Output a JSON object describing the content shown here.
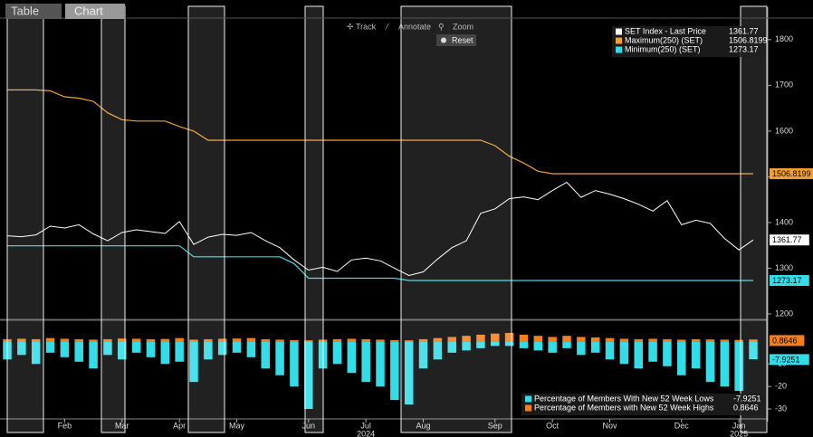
{
  "tabs": [
    "Table",
    "Chart"
  ],
  "toolbar": [
    "Track",
    "Annotate",
    "Zoom",
    "Reset"
  ],
  "annotations": [
    {
      "text": "2024",
      "at": "Jul"
    },
    {
      "text": "2025",
      "at": "Jan"
    }
  ],
  "chart_data": [
    {
      "type": "line",
      "ylim": [
        1190,
        1867
      ],
      "yticks": [
        1200,
        1300,
        1400,
        1500,
        1600,
        1700,
        1800
      ],
      "series": [
        {
          "name": "SET Index - Last Price",
          "color": "#ffffff",
          "values": [
            1371,
            1369,
            1373,
            1392,
            1388,
            1395,
            1375,
            1360,
            1378,
            1384,
            1380,
            1376,
            1402,
            1352,
            1368,
            1374,
            1372,
            1378,
            1360,
            1345,
            1318,
            1296,
            1302,
            1293,
            1318,
            1322,
            1316,
            1300,
            1284,
            1292,
            1320,
            1345,
            1360,
            1420,
            1430,
            1452,
            1456,
            1450,
            1470,
            1488,
            1455,
            1470,
            1462,
            1452,
            1440,
            1425,
            1448,
            1395,
            1405,
            1398,
            1365,
            1340,
            1361.77
          ]
        },
        {
          "name": "Maximum(250) (SET)",
          "color": "#f0a030",
          "values": [
            1690,
            1690,
            1690,
            1688,
            1675,
            1672,
            1665,
            1640,
            1625,
            1622,
            1622,
            1622,
            1610,
            1600,
            1580,
            1580,
            1580,
            1580,
            1580,
            1580,
            1580,
            1580,
            1580,
            1580,
            1580,
            1580,
            1580,
            1580,
            1580,
            1580,
            1580,
            1580,
            1580,
            1580,
            1568,
            1545,
            1530,
            1512,
            1506.8199,
            1506.8199,
            1506.8199,
            1506.8199,
            1506.8199,
            1506.8199,
            1506.8199,
            1506.8199,
            1506.8199,
            1506.8199,
            1506.8199,
            1506.8199,
            1506.8199,
            1506.8199,
            1506.8199
          ]
        },
        {
          "name": "Minimum(250) (SET)",
          "color": "#33dde8",
          "values": [
            1349,
            1349,
            1349,
            1349,
            1349,
            1349,
            1349,
            1349,
            1349,
            1349,
            1349,
            1349,
            1349,
            1325,
            1325,
            1325,
            1325,
            1325,
            1325,
            1325,
            1310,
            1278,
            1278,
            1278,
            1278,
            1278,
            1278,
            1278,
            1273.17,
            1273.17,
            1273.17,
            1273.17,
            1273.17,
            1273.17,
            1273.17,
            1273.17,
            1273.17,
            1273.17,
            1273.17,
            1273.17,
            1273.17,
            1273.17,
            1273.17,
            1273.17,
            1273.17,
            1273.17,
            1273.17,
            1273.17,
            1273.17,
            1273.17,
            1273.17,
            1273.17,
            1273.17
          ]
        }
      ]
    },
    {
      "type": "bar",
      "categories": [
        null,
        null,
        null,
        null,
        "Feb",
        null,
        null,
        null,
        "Mar",
        null,
        null,
        null,
        "Apr",
        null,
        null,
        null,
        "May",
        null,
        null,
        null,
        null,
        "Jun",
        null,
        null,
        null,
        "Jul",
        null,
        null,
        null,
        "Aug",
        null,
        null,
        null,
        null,
        "Sep",
        null,
        null,
        null,
        "Oct",
        null,
        null,
        null,
        "Nov",
        null,
        null,
        null,
        null,
        "Dec",
        null,
        null,
        null,
        "Jan",
        null
      ],
      "ylim": [
        -34,
        9
      ],
      "yticks": [
        -30,
        -20,
        -10
      ],
      "series": [
        {
          "name": "Percentage of Members With New 52 Week Lows",
          "color": "#33dde8",
          "values": [
            -8,
            -6,
            -10,
            -5,
            -7,
            -9,
            -12,
            -6,
            -8,
            -5,
            -7,
            -10,
            -9,
            -18,
            -8,
            -6,
            -5,
            -7,
            -12,
            -15,
            -20,
            -30,
            -12,
            -10,
            -14,
            -18,
            -20,
            -26,
            -28,
            -12,
            -8,
            -5,
            -4,
            -3,
            -2,
            -2,
            -3,
            -4,
            -5,
            -3,
            -6,
            -5,
            -8,
            -10,
            -12,
            -9,
            -11,
            -15,
            -12,
            -18,
            -20,
            -22,
            -7.9251
          ]
        },
        {
          "name": "Percentage of Members with New 52 Week Highs",
          "color": "#f08020",
          "values": [
            1,
            1.2,
            1,
            1.5,
            1.2,
            1,
            0.8,
            1,
            1.3,
            1.2,
            1,
            1.1,
            1.5,
            0.8,
            1,
            1.2,
            1.3,
            1.5,
            1,
            0.8,
            0.6,
            0.5,
            0.8,
            1,
            1.2,
            1,
            0.8,
            0.6,
            0.5,
            1,
            1.5,
            2,
            2.5,
            3,
            3.5,
            3.8,
            3,
            2.5,
            2,
            2.5,
            2,
            1.8,
            1.5,
            1.2,
            1,
            1.2,
            1,
            0.8,
            1,
            0.9,
            0.8,
            0.7,
            0.8646
          ]
        }
      ]
    }
  ]
}
